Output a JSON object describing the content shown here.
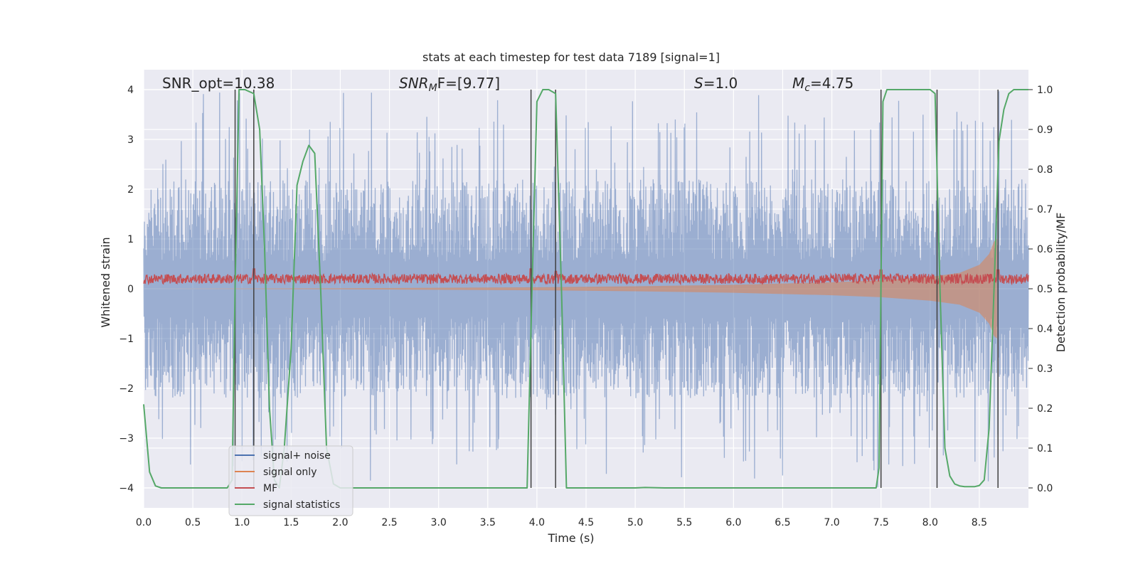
{
  "chart_data": {
    "type": "line",
    "title": "stats at each timestep for test data 7189 [signal=1]",
    "xlabel": "Time (s)",
    "ylabel": "Whitened strain",
    "y2label": "Detection probability/MF",
    "xlim": [
      0.0,
      9.0
    ],
    "ylim": [
      -4.4,
      4.4
    ],
    "y2lim": [
      -0.05,
      1.05
    ],
    "xticks": [
      "0.0",
      "0.5",
      "1.0",
      "1.5",
      "2.0",
      "2.5",
      "3.0",
      "3.5",
      "4.0",
      "4.5",
      "5.0",
      "5.5",
      "6.0",
      "6.5",
      "7.0",
      "7.5",
      "8.0",
      "8.5"
    ],
    "xtick_values": [
      0.0,
      0.5,
      1.0,
      1.5,
      2.0,
      2.5,
      3.0,
      3.5,
      4.0,
      4.5,
      5.0,
      5.5,
      6.0,
      6.5,
      7.0,
      7.5,
      8.0,
      8.5
    ],
    "yticks": [
      "−4",
      "−3",
      "−2",
      "−1",
      "0",
      "1",
      "2",
      "3",
      "4"
    ],
    "ytick_values": [
      -4,
      -3,
      -2,
      -1,
      0,
      1,
      2,
      3,
      4
    ],
    "y2ticks": [
      "0.0",
      "0.1",
      "0.2",
      "0.3",
      "0.4",
      "0.5",
      "0.6",
      "0.7",
      "0.8",
      "0.9",
      "1.0"
    ],
    "y2tick_values": [
      0.0,
      0.1,
      0.2,
      0.3,
      0.4,
      0.5,
      0.6,
      0.7,
      0.8,
      0.9,
      1.0
    ],
    "grid": true,
    "legend_position": "lower-left",
    "annotations": {
      "snr_opt": "SNR_opt=10.38",
      "snr_mf_main": "SNR",
      "snr_mf_sub": "M",
      "snr_mf_rest": "F=[9.77]",
      "s_main": "S",
      "s_rest": "=1.0",
      "mc_main": "M",
      "mc_sub": "c",
      "mc_rest": "=4.75"
    },
    "vertical_markers": [
      0.93,
      1.12,
      3.94,
      4.19,
      7.5,
      8.07,
      8.69
    ],
    "series": [
      {
        "name": "signal+ noise",
        "color": "#4c72b0",
        "envelope": {
          "typical_amplitude": 2.2,
          "peak_amplitude": 4.0,
          "x_range": [
            0.0,
            9.0
          ]
        }
      },
      {
        "name": "signal only",
        "color": "#dd8452",
        "envelope_points": [
          [
            0.0,
            0.0
          ],
          [
            2.0,
            0.01
          ],
          [
            4.0,
            0.03
          ],
          [
            5.0,
            0.05
          ],
          [
            6.0,
            0.08
          ],
          [
            7.0,
            0.13
          ],
          [
            7.5,
            0.17
          ],
          [
            8.0,
            0.24
          ],
          [
            8.3,
            0.32
          ],
          [
            8.5,
            0.48
          ],
          [
            8.6,
            0.7
          ],
          [
            8.65,
            0.95
          ],
          [
            8.68,
            1.0
          ]
        ]
      },
      {
        "name": "MF",
        "color": "#c44e52",
        "level_range": [
          0.1,
          0.3
        ],
        "peaks": [
          [
            1.12,
            0.4
          ],
          [
            3.94,
            0.4
          ],
          [
            4.19,
            0.35
          ],
          [
            7.5,
            0.38
          ],
          [
            8.69,
            0.38
          ]
        ]
      },
      {
        "name": "signal statistics",
        "color": "#55a868",
        "axis": "y2",
        "x": [
          0.0,
          0.06,
          0.12,
          0.18,
          0.3,
          0.5,
          0.7,
          0.85,
          0.9,
          0.93,
          0.97,
          1.03,
          1.12,
          1.18,
          1.23,
          1.28,
          1.33,
          1.38,
          1.43,
          1.5,
          1.56,
          1.62,
          1.68,
          1.74,
          1.8,
          1.86,
          1.93,
          2.0,
          2.2,
          2.5,
          3.0,
          3.5,
          3.9,
          3.95,
          4.0,
          4.06,
          4.12,
          4.19,
          4.25,
          4.3,
          4.4,
          4.6,
          5.0,
          5.1,
          5.3,
          6.0,
          7.0,
          7.45,
          7.48,
          7.52,
          7.56,
          7.6,
          7.8,
          8.0,
          8.05,
          8.1,
          8.15,
          8.2,
          8.25,
          8.3,
          8.35,
          8.4,
          8.45,
          8.5,
          8.55,
          8.6,
          8.65,
          8.7,
          8.75,
          8.8,
          8.85,
          8.9,
          8.95,
          9.0
        ],
        "values": [
          0.21,
          0.04,
          0.005,
          0.0,
          0.0,
          0.0,
          0.0,
          0.0,
          0.02,
          0.5,
          1.0,
          1.0,
          0.99,
          0.9,
          0.6,
          0.2,
          0.02,
          0.0,
          0.1,
          0.35,
          0.76,
          0.82,
          0.86,
          0.84,
          0.5,
          0.1,
          0.01,
          0.0,
          0.0,
          0.0,
          0.0,
          0.0,
          0.0,
          0.5,
          0.97,
          1.0,
          1.0,
          0.99,
          0.5,
          0.0,
          0.0,
          0.0,
          0.0,
          0.001,
          0.0,
          0.0,
          0.0,
          0.0,
          0.05,
          0.97,
          1.0,
          1.0,
          1.0,
          1.0,
          0.99,
          0.5,
          0.1,
          0.03,
          0.01,
          0.005,
          0.003,
          0.003,
          0.003,
          0.006,
          0.02,
          0.15,
          0.5,
          0.87,
          0.95,
          0.99,
          1.0,
          1.0,
          1.0,
          1.0
        ]
      }
    ]
  }
}
